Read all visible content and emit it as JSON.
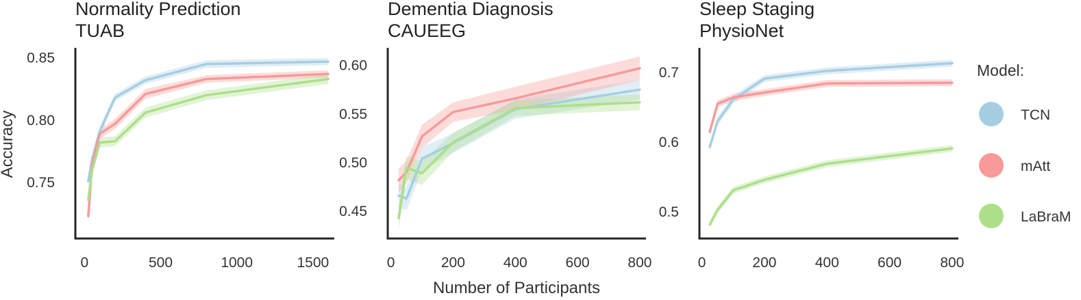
{
  "figure": {
    "shared_xlabel": "Number of Participants",
    "shared_ylabel": "Accuracy"
  },
  "legend": {
    "title": "Model:",
    "items": [
      {
        "label": "TCN",
        "color": "#a6cee3"
      },
      {
        "label": "mAtt",
        "color": "#f79a99"
      },
      {
        "label": "LaBraM",
        "color": "#addf8a"
      }
    ]
  },
  "chart_data": [
    {
      "type": "line",
      "title": [
        "Normality Prediction",
        "TUAB"
      ],
      "xlabel": "",
      "ylabel": "Accuracy",
      "xlim": [
        -60,
        1640
      ],
      "ylim": [
        0.705,
        0.858
      ],
      "xticks": [
        0,
        500,
        1000,
        1500
      ],
      "yticks": [
        0.75,
        0.8,
        0.85
      ],
      "ytick_labels": [
        "0.75",
        "0.80",
        "0.85"
      ],
      "grid": false,
      "series": [
        {
          "name": "TCN",
          "color": "#a6cee3",
          "x": [
            25,
            50,
            100,
            200,
            400,
            800,
            1600
          ],
          "y": [
            0.751,
            0.769,
            0.791,
            0.818,
            0.832,
            0.845,
            0.847
          ],
          "ci": [
            0.004,
            0.004,
            0.004,
            0.003,
            0.003,
            0.003,
            0.003
          ]
        },
        {
          "name": "mAtt",
          "color": "#f79a99",
          "x": [
            25,
            50,
            100,
            200,
            400,
            800,
            1600
          ],
          "y": [
            0.723,
            0.765,
            0.789,
            0.797,
            0.821,
            0.833,
            0.837
          ],
          "ci": [
            0.005,
            0.004,
            0.004,
            0.004,
            0.004,
            0.003,
            0.003
          ]
        },
        {
          "name": "LaBraM",
          "color": "#addf8a",
          "x": [
            25,
            50,
            100,
            200,
            400,
            800,
            1600
          ],
          "y": [
            0.736,
            0.76,
            0.782,
            0.783,
            0.806,
            0.82,
            0.833
          ],
          "ci": [
            0.005,
            0.005,
            0.004,
            0.004,
            0.004,
            0.004,
            0.004
          ]
        }
      ]
    },
    {
      "type": "line",
      "title": [
        "Dementia Diagnosis",
        "CAUEEG"
      ],
      "xlabel": "Number of Participants",
      "ylabel": "",
      "xlim": [
        -10,
        820
      ],
      "ylim": [
        0.422,
        0.618
      ],
      "xticks": [
        0,
        200,
        400,
        600,
        800
      ],
      "yticks": [
        0.45,
        0.5,
        0.55,
        0.6
      ],
      "ytick_labels": [
        "0.45",
        "0.50",
        "0.55",
        "0.60"
      ],
      "grid": false,
      "series": [
        {
          "name": "TCN",
          "color": "#a6cee3",
          "x": [
            25,
            50,
            100,
            200,
            400,
            800
          ],
          "y": [
            0.466,
            0.463,
            0.504,
            0.52,
            0.555,
            0.575
          ],
          "ci": [
            0.012,
            0.012,
            0.012,
            0.01,
            0.01,
            0.01
          ]
        },
        {
          "name": "mAtt",
          "color": "#f79a99",
          "x": [
            25,
            50,
            100,
            200,
            400,
            800
          ],
          "y": [
            0.482,
            0.49,
            0.527,
            0.552,
            0.566,
            0.597
          ],
          "ci": [
            0.012,
            0.012,
            0.012,
            0.01,
            0.012,
            0.012
          ]
        },
        {
          "name": "LaBraM",
          "color": "#addf8a",
          "x": [
            25,
            50,
            100,
            200,
            400,
            800
          ],
          "y": [
            0.443,
            0.495,
            0.489,
            0.521,
            0.556,
            0.562
          ],
          "ci": [
            0.012,
            0.012,
            0.012,
            0.01,
            0.008,
            0.008
          ]
        }
      ]
    },
    {
      "type": "line",
      "title": [
        "Sleep Staging",
        "PhysioNet"
      ],
      "xlabel": "",
      "ylabel": "",
      "xlim": [
        -8,
        820
      ],
      "ylim": [
        0.462,
        0.735
      ],
      "xticks": [
        0,
        200,
        400,
        600,
        800
      ],
      "yticks": [
        0.5,
        0.6,
        0.7
      ],
      "ytick_labels": [
        "0.5",
        "0.6",
        "0.7"
      ],
      "grid": false,
      "series": [
        {
          "name": "TCN",
          "color": "#a6cee3",
          "x": [
            25,
            50,
            100,
            200,
            400,
            800
          ],
          "y": [
            0.593,
            0.63,
            0.661,
            0.691,
            0.702,
            0.713
          ],
          "ci": [
            0.006,
            0.006,
            0.006,
            0.005,
            0.005,
            0.005
          ]
        },
        {
          "name": "mAtt",
          "color": "#f79a99",
          "x": [
            25,
            50,
            100,
            200,
            400,
            800
          ],
          "y": [
            0.615,
            0.655,
            0.664,
            0.671,
            0.684,
            0.685
          ],
          "ci": [
            0.006,
            0.005,
            0.005,
            0.005,
            0.005,
            0.005
          ]
        },
        {
          "name": "LaBraM",
          "color": "#addf8a",
          "x": [
            25,
            50,
            100,
            200,
            400,
            800
          ],
          "y": [
            0.482,
            0.503,
            0.531,
            0.546,
            0.569,
            0.591
          ],
          "ci": [
            0.005,
            0.005,
            0.005,
            0.005,
            0.005,
            0.005
          ]
        }
      ]
    }
  ]
}
